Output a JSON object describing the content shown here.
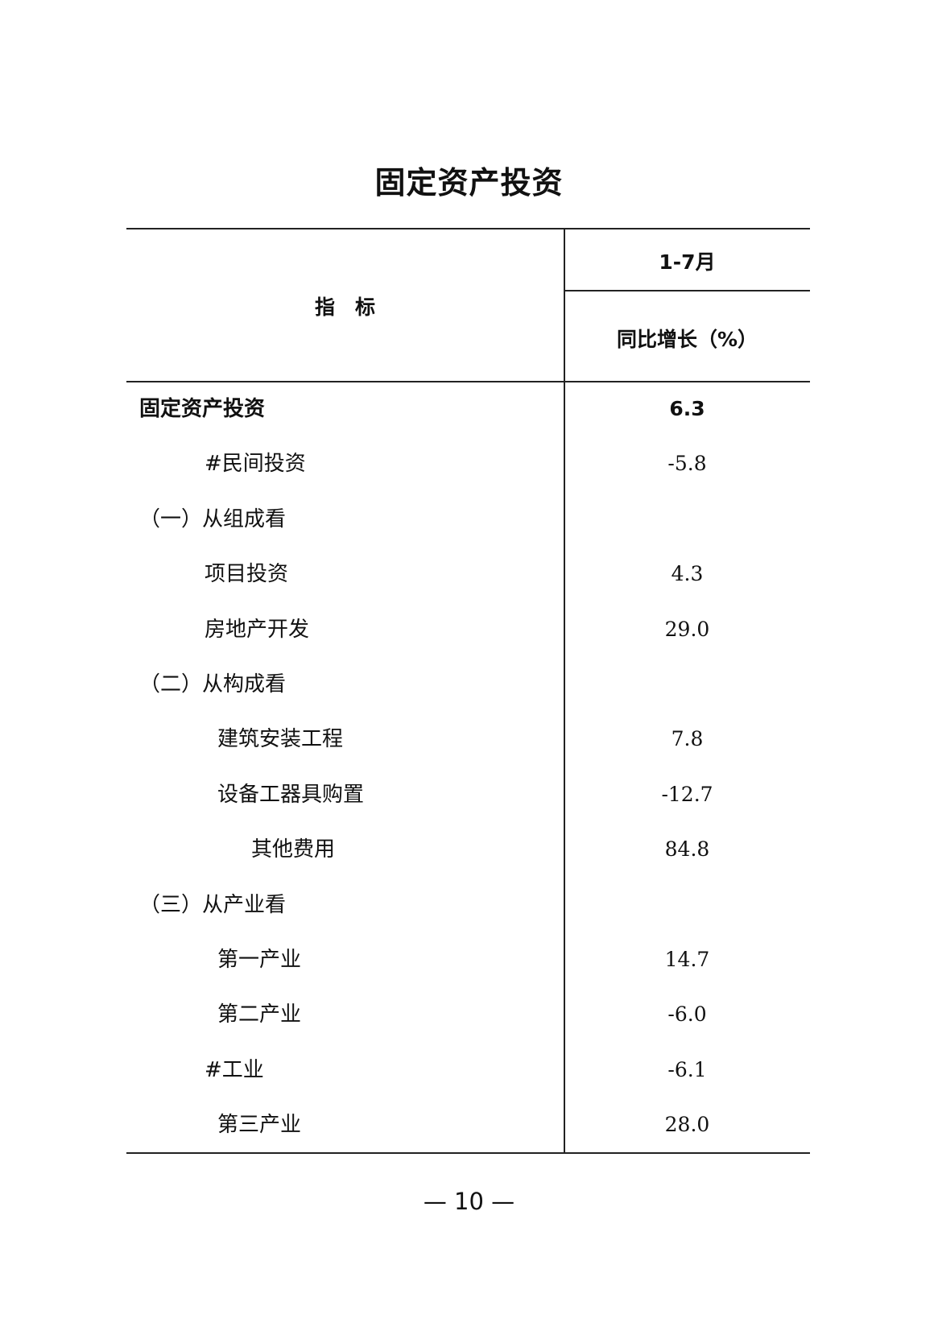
{
  "title": "固定资产投资",
  "header": {
    "indicator": "指　标",
    "period": "1-7月",
    "measure": "同比增长（%）"
  },
  "rows": [
    {
      "label": "固定资产投资",
      "value": "6.3"
    },
    {
      "label": "#民间投资",
      "value": "-5.8"
    },
    {
      "label": "（一）从组成看",
      "value": ""
    },
    {
      "label": "项目投资",
      "value": "4.3"
    },
    {
      "label": "房地产开发",
      "value": "29.0"
    },
    {
      "label": "（二）从构成看",
      "value": ""
    },
    {
      "label": "建筑安装工程",
      "value": "7.8"
    },
    {
      "label": "设备工器具购置",
      "value": "-12.7"
    },
    {
      "label": "其他费用",
      "value": "84.8"
    },
    {
      "label": "（三）从产业看",
      "value": ""
    },
    {
      "label": "第一产业",
      "value": "14.7"
    },
    {
      "label": "第二产业",
      "value": "-6.0"
    },
    {
      "label": "#工业",
      "value": "-6.1"
    },
    {
      "label": "第三产业",
      "value": "28.0"
    }
  ],
  "page_number": "— 10 —"
}
